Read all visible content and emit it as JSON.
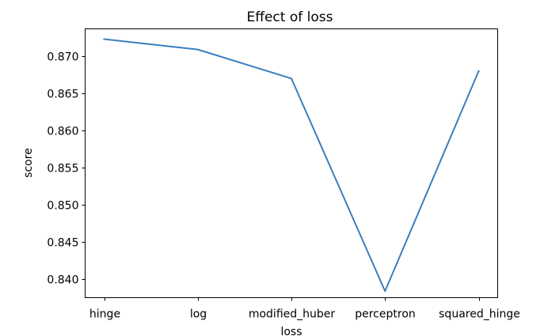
{
  "chart_data": {
    "type": "line",
    "title": "Effect of loss",
    "xlabel": "loss",
    "ylabel": "score",
    "categories": [
      "hinge",
      "log",
      "modified_huber",
      "perceptron",
      "squared_hinge"
    ],
    "series": [
      {
        "values": [
          0.8723,
          0.8709,
          0.867,
          0.8384,
          0.868
        ],
        "color": "#3a7ebf"
      }
    ],
    "ylim": [
      0.83752,
      0.87368
    ],
    "yticks": [
      0.84,
      0.845,
      0.85,
      0.855,
      0.86,
      0.865,
      0.87
    ],
    "ytick_labels": [
      "0.840",
      "0.845",
      "0.850",
      "0.855",
      "0.860",
      "0.865",
      "0.870"
    ],
    "grid": false,
    "legend": false
  }
}
